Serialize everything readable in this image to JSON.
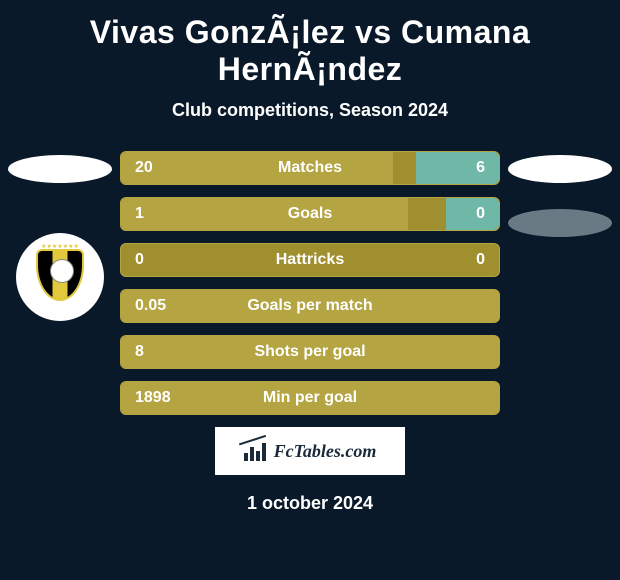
{
  "title": "Vivas GonzÃ¡lez vs Cumana HernÃ¡ndez",
  "subtitle": "Club competitions, Season 2024",
  "date": "1 october 2024",
  "fctables_label": "FcTables.com",
  "colors": {
    "background": "#0a1929",
    "bar_base": "#a08f2e",
    "bar_border": "#b5a442",
    "bar_left_fill": "#b5a442",
    "bar_right_fill": "#6fb8a8",
    "text": "#ffffff",
    "ellipse_light": "#ffffff",
    "ellipse_dark": "#6a7a85"
  },
  "stats": [
    {
      "label": "Matches",
      "left_val": "20",
      "right_val": "6",
      "left_pct": 72,
      "right_pct": 22
    },
    {
      "label": "Goals",
      "left_val": "1",
      "right_val": "0",
      "left_pct": 76,
      "right_pct": 14
    },
    {
      "label": "Hattricks",
      "left_val": "0",
      "right_val": "0",
      "left_pct": 0,
      "right_pct": 0
    },
    {
      "label": "Goals per match",
      "left_val": "0.05",
      "right_val": "",
      "left_pct": 100,
      "right_pct": 0
    },
    {
      "label": "Shots per goal",
      "left_val": "8",
      "right_val": "",
      "left_pct": 100,
      "right_pct": 0
    },
    {
      "label": "Min per goal",
      "left_val": "1898",
      "right_val": "",
      "left_pct": 100,
      "right_pct": 0
    }
  ]
}
